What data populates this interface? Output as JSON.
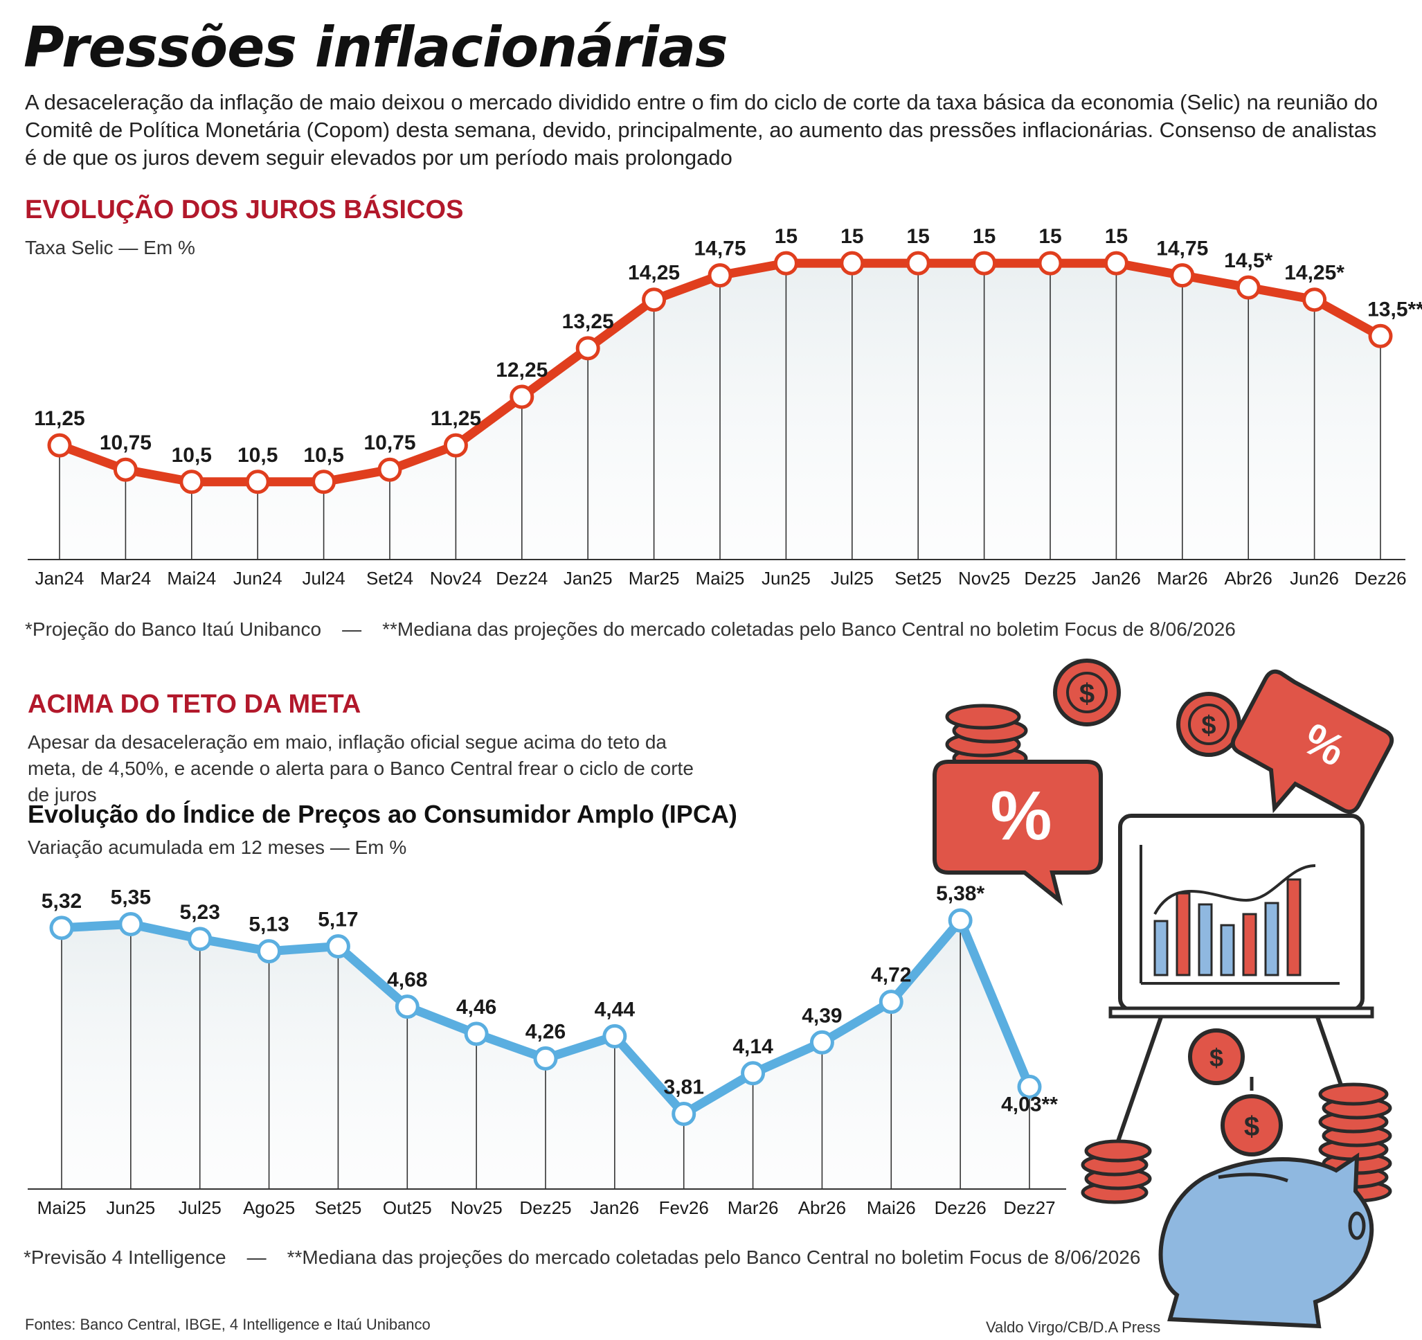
{
  "header": {
    "title": "Pressões inflacionárias",
    "intro": "A desaceleração da inflação de maio deixou o mercado dividido entre o fim do ciclo de corte da taxa básica da economia (Selic) na reunião do Comitê de Política Monetária (Copom) desta semana, devido, principalmente, ao aumento das pressões inflacionárias. Consenso de analistas é de que os juros devem seguir elevados por um período mais prolongado"
  },
  "selic_section": {
    "title": "EVOLUÇÃO DOS JUROS BÁSICOS",
    "subtitle": "Taxa Selic — Em %",
    "note1": "*Projeção do Banco Itaú Unibanco",
    "note_sep": "—",
    "note2": "**Mediana das projeções do mercado coletadas pelo Banco Central no boletim Focus de 8/06/2026"
  },
  "ipca_section": {
    "title": "ACIMA DO TETO DA META",
    "desc": "Apesar da desaceleração em maio, inflação oficial segue acima do teto da meta, de 4,50%, e acende o alerta para o Banco Central frear o ciclo de corte de juros",
    "chart_title": "Evolução do Índice de Preços ao Consumidor Amplo (IPCA)",
    "chart_subtitle": "Variação acumulada em 12 meses — Em %",
    "note1": "*Previsão 4 Intelligence",
    "note_sep": "—",
    "note2": "**Mediana das projeções do mercado coletadas pelo Banco Central no boletim Focus de 8/06/2026"
  },
  "footer": {
    "sources": "Fontes: Banco Central, IBGE, 4 Intelligence e Itaú Unibanco",
    "credit": "Valdo Virgo/CB/D.A Press"
  },
  "illustration": {
    "icons": [
      "coin-stack-icon",
      "dollar-coin-icon",
      "percent-speech-bubble-icon",
      "presentation-board-bar-chart-icon",
      "piggy-bank-icon"
    ],
    "percent_glyph": "%",
    "dollar_glyph": "$"
  },
  "colors": {
    "selic_line": "#e03e1e",
    "ipca_line": "#5aaee0",
    "title_red": "#b2182b",
    "illus_red": "#e05548",
    "illus_blue": "#8fb8e0"
  },
  "chart_data": [
    {
      "type": "line",
      "title": "EVOLUÇÃO DOS JUROS BÁSICOS",
      "ylabel": "Taxa Selic — Em %",
      "categories": [
        "Jan24",
        "Mar24",
        "Mai24",
        "Jun24",
        "Jul24",
        "Set24",
        "Nov24",
        "Dez24",
        "Jan25",
        "Mar25",
        "Mai25",
        "Jun25",
        "Jul25",
        "Set25",
        "Nov25",
        "Dez25",
        "Jan26",
        "Mar26",
        "Abr26",
        "Jun26",
        "Dez26"
      ],
      "values": [
        11.25,
        10.75,
        10.5,
        10.5,
        10.5,
        10.75,
        11.25,
        12.25,
        13.25,
        14.25,
        14.75,
        15,
        15,
        15,
        15,
        15,
        15,
        14.75,
        14.5,
        14.25,
        13.5
      ],
      "labels": [
        "11,25",
        "10,75",
        "10,5",
        "10,5",
        "10,5",
        "10,75",
        "11,25",
        "12,25",
        "13,25",
        "14,25",
        "14,75",
        "15",
        "15",
        "15",
        "15",
        "15",
        "15",
        "14,75",
        "14,5*",
        "14,25*",
        "13,5**"
      ],
      "ylim": [
        8.9,
        15.5
      ],
      "grid": false
    },
    {
      "type": "line",
      "title": "Evolução do Índice de Preços ao Consumidor Amplo (IPCA)",
      "ylabel": "Variação acumulada em 12 meses — Em %",
      "categories": [
        "Mai25",
        "Jun25",
        "Jul25",
        "Ago25",
        "Set25",
        "Out25",
        "Nov25",
        "Dez25",
        "Jan26",
        "Fev26",
        "Mar26",
        "Abr26",
        "Mai26",
        "Dez26",
        "Dez27"
      ],
      "values": [
        5.32,
        5.35,
        5.23,
        5.13,
        5.17,
        4.68,
        4.46,
        4.26,
        4.44,
        3.81,
        4.14,
        4.39,
        4.72,
        5.38,
        4.03
      ],
      "labels": [
        "5,32",
        "5,35",
        "5,23",
        "5,13",
        "5,17",
        "4,68",
        "4,46",
        "4,26",
        "4,44",
        "3,81",
        "4,14",
        "4,39",
        "4,72",
        "5,38*",
        "4,03**"
      ],
      "ylim": [
        3.2,
        5.6
      ],
      "grid": false
    }
  ]
}
